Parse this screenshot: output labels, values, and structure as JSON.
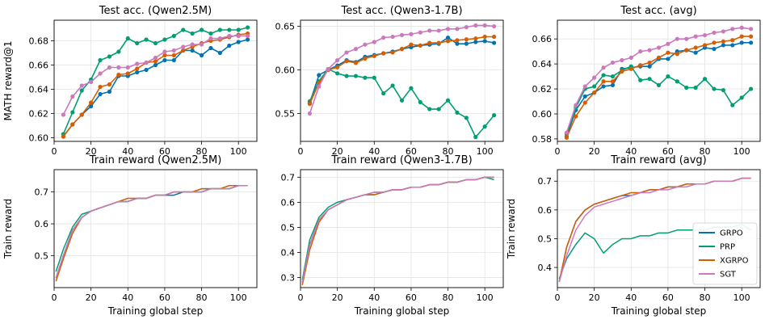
{
  "colors": {
    "GRPO": "#0173b2",
    "PRP": "#029e73",
    "XGRPO": "#d55e00",
    "SGT": "#cc78bc"
  },
  "legend": {
    "placement": "lower-right",
    "entries": [
      "GRPO",
      "PRP",
      "XGRPO",
      "SGT"
    ]
  },
  "chart_data": [
    {
      "type": "line",
      "title": "Test acc. (Qwen2.5M)",
      "ylabel": "MATH reward@1",
      "xlabel": "",
      "xlim": [
        0,
        110
      ],
      "ylim": [
        0.597,
        0.697
      ],
      "xticks": [
        0,
        20,
        40,
        60,
        80,
        100
      ],
      "yticks": [
        0.6,
        0.62,
        0.64,
        0.66,
        0.68
      ],
      "yformat": 2,
      "markers": true,
      "grid": true,
      "x": [
        5,
        10,
        15,
        20,
        25,
        30,
        35,
        40,
        45,
        50,
        55,
        60,
        65,
        70,
        75,
        80,
        85,
        90,
        95,
        100,
        105
      ],
      "series": [
        {
          "name": "GRPO",
          "values": [
            0.601,
            0.611,
            0.619,
            0.626,
            0.636,
            0.638,
            0.651,
            0.651,
            0.654,
            0.656,
            0.66,
            0.664,
            0.664,
            0.672,
            0.672,
            0.668,
            0.674,
            0.67,
            0.676,
            0.679,
            0.681
          ]
        },
        {
          "name": "PRP",
          "values": [
            0.603,
            0.621,
            0.639,
            0.648,
            0.664,
            0.667,
            0.671,
            0.682,
            0.678,
            0.681,
            0.678,
            0.681,
            0.684,
            0.689,
            0.686,
            0.689,
            0.686,
            0.689,
            0.689,
            0.689,
            0.691
          ]
        },
        {
          "name": "XGRPO",
          "values": [
            0.601,
            0.611,
            0.619,
            0.629,
            0.642,
            0.644,
            0.652,
            0.653,
            0.657,
            0.662,
            0.663,
            0.668,
            0.668,
            0.672,
            0.675,
            0.678,
            0.68,
            0.681,
            0.683,
            0.685,
            0.686
          ]
        },
        {
          "name": "SGT",
          "values": [
            0.619,
            0.634,
            0.643,
            0.646,
            0.653,
            0.658,
            0.658,
            0.658,
            0.661,
            0.662,
            0.666,
            0.671,
            0.672,
            0.675,
            0.677,
            0.677,
            0.682,
            0.682,
            0.684,
            0.684,
            0.684
          ]
        }
      ]
    },
    {
      "type": "line",
      "title": "Test acc. (Qwen3-1.7B)",
      "ylabel": "",
      "xlabel": "",
      "xlim": [
        0,
        110
      ],
      "ylim": [
        0.518,
        0.657
      ],
      "xticks": [
        0,
        20,
        40,
        60,
        80,
        100
      ],
      "yticks": [
        0.55,
        0.6,
        0.65
      ],
      "yformat": 2,
      "markers": true,
      "grid": true,
      "x": [
        5,
        10,
        15,
        20,
        25,
        30,
        35,
        40,
        45,
        50,
        55,
        60,
        65,
        70,
        75,
        80,
        85,
        90,
        95,
        100,
        105
      ],
      "series": [
        {
          "name": "GRPO",
          "values": [
            0.562,
            0.594,
            0.6,
            0.605,
            0.611,
            0.609,
            0.615,
            0.617,
            0.619,
            0.621,
            0.624,
            0.626,
            0.628,
            0.629,
            0.63,
            0.637,
            0.63,
            0.63,
            0.632,
            0.633,
            0.631
          ]
        },
        {
          "name": "PRP",
          "values": [
            0.564,
            0.587,
            0.601,
            0.596,
            0.593,
            0.593,
            0.591,
            0.591,
            0.573,
            0.582,
            0.565,
            0.579,
            0.563,
            0.555,
            0.555,
            0.565,
            0.551,
            0.545,
            0.523,
            0.535,
            0.548
          ]
        },
        {
          "name": "XGRPO",
          "values": [
            0.561,
            0.585,
            0.6,
            0.603,
            0.61,
            0.608,
            0.613,
            0.616,
            0.619,
            0.62,
            0.624,
            0.629,
            0.628,
            0.631,
            0.631,
            0.633,
            0.634,
            0.635,
            0.636,
            0.638,
            0.638
          ]
        },
        {
          "name": "SGT",
          "values": [
            0.55,
            0.581,
            0.601,
            0.611,
            0.62,
            0.624,
            0.629,
            0.632,
            0.637,
            0.638,
            0.64,
            0.641,
            0.643,
            0.645,
            0.645,
            0.647,
            0.647,
            0.649,
            0.651,
            0.651,
            0.65
          ]
        }
      ]
    },
    {
      "type": "line",
      "title": "Test acc. (avg)",
      "ylabel": "",
      "xlabel": "",
      "xlim": [
        0,
        110
      ],
      "ylim": [
        0.578,
        0.675
      ],
      "xticks": [
        0,
        20,
        40,
        60,
        80,
        100
      ],
      "yticks": [
        0.58,
        0.6,
        0.62,
        0.64,
        0.66
      ],
      "yformat": 2,
      "markers": true,
      "grid": true,
      "x": [
        5,
        10,
        15,
        20,
        25,
        30,
        35,
        40,
        45,
        50,
        55,
        60,
        65,
        70,
        75,
        80,
        85,
        90,
        95,
        100,
        105
      ],
      "series": [
        {
          "name": "GRPO",
          "values": [
            0.582,
            0.603,
            0.614,
            0.617,
            0.622,
            0.623,
            0.636,
            0.637,
            0.638,
            0.638,
            0.644,
            0.644,
            0.65,
            0.651,
            0.649,
            0.653,
            0.652,
            0.655,
            0.655,
            0.657,
            0.657
          ]
        },
        {
          "name": "PRP",
          "values": [
            0.584,
            0.605,
            0.62,
            0.622,
            0.631,
            0.63,
            0.635,
            0.638,
            0.627,
            0.628,
            0.623,
            0.63,
            0.626,
            0.621,
            0.621,
            0.628,
            0.62,
            0.619,
            0.607,
            0.613,
            0.62
          ]
        },
        {
          "name": "XGRPO",
          "values": [
            0.581,
            0.598,
            0.609,
            0.617,
            0.626,
            0.626,
            0.634,
            0.636,
            0.639,
            0.641,
            0.645,
            0.649,
            0.648,
            0.651,
            0.653,
            0.655,
            0.657,
            0.658,
            0.659,
            0.662,
            0.662
          ]
        },
        {
          "name": "SGT",
          "values": [
            0.585,
            0.607,
            0.622,
            0.629,
            0.637,
            0.641,
            0.643,
            0.645,
            0.65,
            0.651,
            0.653,
            0.656,
            0.66,
            0.66,
            0.662,
            0.663,
            0.665,
            0.666,
            0.668,
            0.669,
            0.668
          ]
        }
      ]
    },
    {
      "type": "line",
      "title": "Train reward (Qwen2.5M)",
      "ylabel": "Train reward",
      "xlabel": "Training global step",
      "xlim": [
        0,
        110
      ],
      "ylim": [
        0.4,
        0.77
      ],
      "xticks": [
        0,
        20,
        40,
        60,
        80,
        100
      ],
      "yticks": [
        0.5,
        0.6,
        0.7
      ],
      "yformat": 1,
      "markers": false,
      "grid": true,
      "x": [
        1,
        5,
        10,
        15,
        20,
        25,
        30,
        35,
        40,
        45,
        50,
        55,
        60,
        65,
        70,
        75,
        80,
        85,
        90,
        95,
        100,
        105
      ],
      "series": [
        {
          "name": "GRPO",
          "values": [
            0.43,
            0.5,
            0.58,
            0.62,
            0.64,
            0.65,
            0.66,
            0.67,
            0.67,
            0.68,
            0.68,
            0.69,
            0.69,
            0.69,
            0.7,
            0.7,
            0.7,
            0.71,
            0.71,
            0.71,
            0.72,
            0.72
          ]
        },
        {
          "name": "PRP",
          "values": [
            0.45,
            0.52,
            0.59,
            0.63,
            0.64,
            0.65,
            0.66,
            0.67,
            0.67,
            0.68,
            0.68,
            0.69,
            0.69,
            0.7,
            0.7,
            0.7,
            0.71,
            0.71,
            0.71,
            0.71,
            0.72,
            0.72
          ]
        },
        {
          "name": "XGRPO",
          "values": [
            0.42,
            0.49,
            0.57,
            0.62,
            0.64,
            0.65,
            0.66,
            0.67,
            0.68,
            0.68,
            0.68,
            0.69,
            0.69,
            0.7,
            0.7,
            0.7,
            0.71,
            0.71,
            0.71,
            0.72,
            0.72,
            0.72
          ]
        },
        {
          "name": "SGT",
          "values": [
            0.43,
            0.5,
            0.58,
            0.62,
            0.64,
            0.65,
            0.66,
            0.67,
            0.67,
            0.68,
            0.68,
            0.69,
            0.69,
            0.7,
            0.7,
            0.7,
            0.7,
            0.71,
            0.71,
            0.71,
            0.72,
            0.72
          ]
        }
      ]
    },
    {
      "type": "line",
      "title": "Train reward (Qwen3-1.7B)",
      "ylabel": "",
      "xlabel": "Training global step",
      "xlim": [
        0,
        110
      ],
      "ylim": [
        0.26,
        0.73
      ],
      "xticks": [
        0,
        20,
        40,
        60,
        80,
        100
      ],
      "yticks": [
        0.3,
        0.4,
        0.5,
        0.6,
        0.7
      ],
      "yformat": 1,
      "markers": false,
      "grid": true,
      "x": [
        1,
        5,
        10,
        15,
        20,
        25,
        30,
        35,
        40,
        45,
        50,
        55,
        60,
        65,
        70,
        75,
        80,
        85,
        90,
        95,
        100,
        105
      ],
      "series": [
        {
          "name": "GRPO",
          "values": [
            0.28,
            0.43,
            0.53,
            0.57,
            0.59,
            0.61,
            0.62,
            0.63,
            0.63,
            0.64,
            0.65,
            0.65,
            0.66,
            0.66,
            0.67,
            0.67,
            0.68,
            0.68,
            0.69,
            0.69,
            0.7,
            0.7
          ]
        },
        {
          "name": "PRP",
          "values": [
            0.29,
            0.45,
            0.54,
            0.58,
            0.6,
            0.61,
            0.62,
            0.63,
            0.64,
            0.64,
            0.65,
            0.65,
            0.66,
            0.66,
            0.67,
            0.67,
            0.68,
            0.68,
            0.69,
            0.69,
            0.7,
            0.69
          ]
        },
        {
          "name": "XGRPO",
          "values": [
            0.27,
            0.41,
            0.52,
            0.57,
            0.59,
            0.61,
            0.62,
            0.63,
            0.63,
            0.64,
            0.65,
            0.65,
            0.66,
            0.66,
            0.67,
            0.67,
            0.68,
            0.68,
            0.69,
            0.69,
            0.7,
            0.7
          ]
        },
        {
          "name": "SGT",
          "values": [
            0.28,
            0.43,
            0.53,
            0.57,
            0.59,
            0.61,
            0.62,
            0.63,
            0.64,
            0.64,
            0.65,
            0.65,
            0.66,
            0.66,
            0.67,
            0.67,
            0.68,
            0.68,
            0.69,
            0.69,
            0.7,
            0.7
          ]
        }
      ]
    },
    {
      "type": "line",
      "title": "Train reward (avg)",
      "ylabel": "Train reward",
      "xlabel": "Training global step",
      "xlim": [
        0,
        110
      ],
      "ylim": [
        0.33,
        0.74
      ],
      "xticks": [
        0,
        20,
        40,
        60,
        80,
        100
      ],
      "yticks": [
        0.4,
        0.5,
        0.6,
        0.7
      ],
      "yformat": 1,
      "markers": false,
      "grid": true,
      "x": [
        1,
        5,
        10,
        15,
        20,
        25,
        30,
        35,
        40,
        45,
        50,
        55,
        60,
        65,
        70,
        75,
        80,
        85,
        90,
        95,
        100,
        105
      ],
      "series": [
        {
          "name": "GRPO",
          "values": [
            0.35,
            0.47,
            0.56,
            0.6,
            0.62,
            0.63,
            0.64,
            0.65,
            0.65,
            0.66,
            0.67,
            0.67,
            0.68,
            0.68,
            0.69,
            0.69,
            0.69,
            0.7,
            0.7,
            0.7,
            0.71,
            0.71
          ]
        },
        {
          "name": "PRP",
          "values": [
            0.36,
            0.43,
            0.48,
            0.52,
            0.5,
            0.45,
            0.48,
            0.5,
            0.5,
            0.51,
            0.51,
            0.52,
            0.52,
            0.53,
            0.53,
            0.53,
            0.53,
            0.54,
            0.54,
            0.54,
            0.55,
            0.53
          ]
        },
        {
          "name": "XGRPO",
          "values": [
            0.35,
            0.47,
            0.56,
            0.6,
            0.62,
            0.63,
            0.64,
            0.65,
            0.66,
            0.66,
            0.67,
            0.67,
            0.68,
            0.68,
            0.69,
            0.69,
            0.69,
            0.7,
            0.7,
            0.7,
            0.71,
            0.71
          ]
        },
        {
          "name": "SGT",
          "values": [
            0.35,
            0.44,
            0.53,
            0.58,
            0.61,
            0.62,
            0.63,
            0.64,
            0.65,
            0.66,
            0.66,
            0.67,
            0.67,
            0.68,
            0.68,
            0.69,
            0.69,
            0.7,
            0.7,
            0.7,
            0.71,
            0.71
          ]
        }
      ]
    }
  ]
}
